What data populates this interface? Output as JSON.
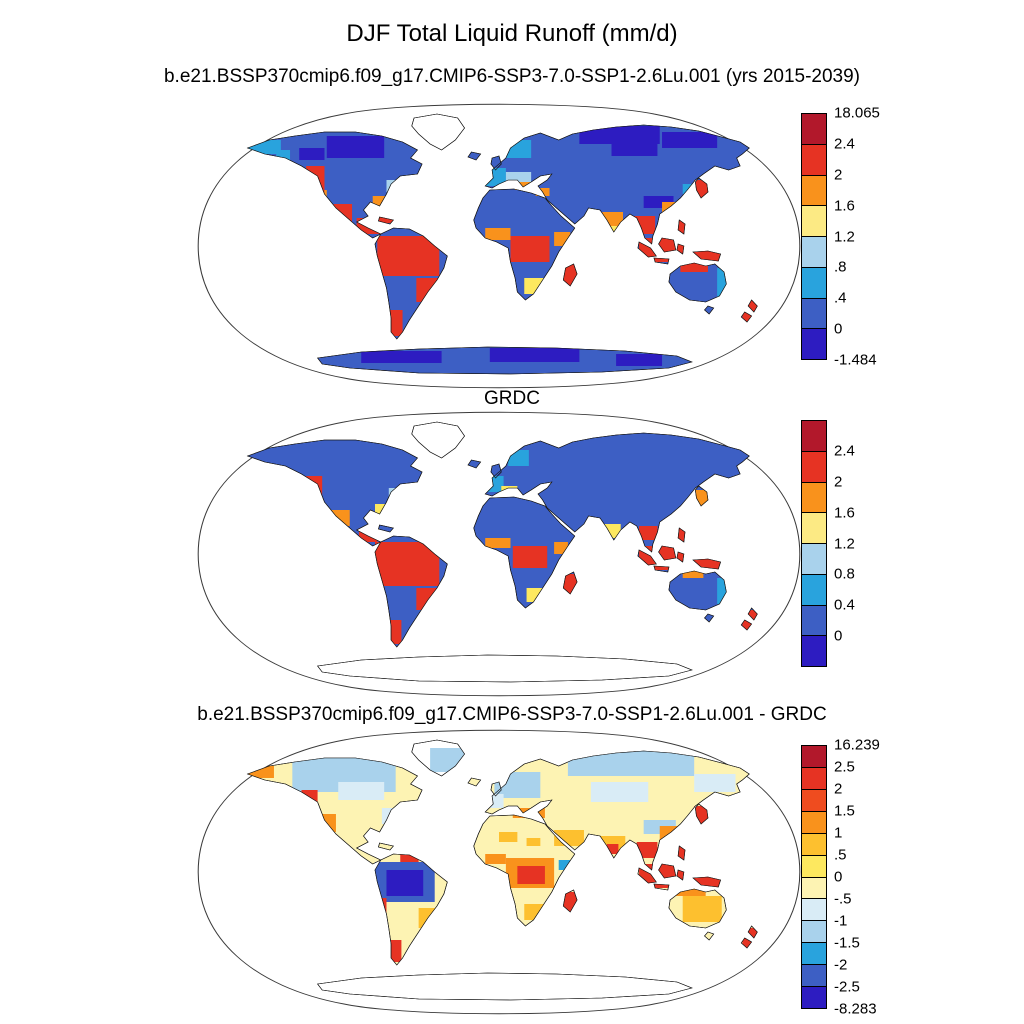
{
  "figure": {
    "title": "DJF Total Liquid Runoff (mm/d)",
    "background": "#ffffff"
  },
  "palette": {
    "darkred": "#b2182b",
    "red": "#e63323",
    "orangered": "#ef4c1f",
    "orange": "#f9921c",
    "amber": "#fdc02f",
    "yellow": "#fde85f",
    "lightyellow": "#fcea84",
    "paleyellow": "#fdf3b3",
    "palestblue": "#d9ecf6",
    "paleblue": "#a9d2ec",
    "cyan": "#29a3dd",
    "blue": "#3d5fc4",
    "indigo": "#2d1cc1",
    "white": "#ffffff"
  },
  "panels": [
    {
      "name": "model",
      "subtitle": "b.e21.BSSP370cmip6.f09_g17.CMIP6-SSP3-7.0-SSP1-2.6Lu.001 (yrs 2015-2039)",
      "colorbar": {
        "colors": [
          "#b2182b",
          "#e63323",
          "#f9921c",
          "#fcea84",
          "#a9d2ec",
          "#29a3dd",
          "#3d5fc4",
          "#2d1cc1"
        ],
        "labels": [
          "18.065",
          "2.4",
          "2",
          "1.6",
          "1.2",
          ".8",
          ".4",
          "0",
          "-1.484"
        ]
      }
    },
    {
      "name": "observations",
      "subtitle": "GRDC",
      "colorbar": {
        "colors": [
          "#b2182b",
          "#e63323",
          "#f9921c",
          "#fcea84",
          "#a9d2ec",
          "#29a3dd",
          "#3d5fc4",
          "#2d1cc1"
        ],
        "labels": [
          "",
          "2.4",
          "2",
          "1.6",
          "1.2",
          "0.8",
          "0.4",
          "0",
          ""
        ]
      }
    },
    {
      "name": "difference",
      "subtitle": "b.e21.BSSP370cmip6.f09_g17.CMIP6-SSP3-7.0-SSP1-2.6Lu.001 - GRDC",
      "colorbar": {
        "colors": [
          "#b2182b",
          "#e63323",
          "#ef4c1f",
          "#f9921c",
          "#fdc02f",
          "#fde85f",
          "#fdf3b3",
          "#d9ecf6",
          "#a9d2ec",
          "#29a3dd",
          "#3d5fc4",
          "#2d1cc1"
        ],
        "labels": [
          "16.239",
          "2.5",
          "2",
          "1.5",
          "1",
          ".5",
          "0",
          "-.5",
          "-1",
          "-1.5",
          "-2",
          "-2.5",
          "-8.283"
        ]
      }
    }
  ],
  "chart_data": [
    {
      "type": "heatmap",
      "subtype": "global-map",
      "map_projection": "robinson",
      "variable": "DJF Total Liquid Runoff",
      "units": "mm/d",
      "panel_title": "b.e21.BSSP370cmip6.f09_g17.CMIP6-SSP3-7.0-SSP1-2.6Lu.001 (yrs 2015-2039)",
      "value_min": -1.484,
      "value_max": 18.065,
      "contour_levels": [
        0,
        0.4,
        0.8,
        1.2,
        1.6,
        2,
        2.4
      ],
      "palette_top_to_bottom": [
        "#b2182b",
        "#e63323",
        "#f9921c",
        "#fcea84",
        "#a9d2ec",
        "#29a3dd",
        "#3d5fc4",
        "#2d1cc1"
      ],
      "legend_position": "right",
      "notes": "Land mostly 0-0.4 mm/d (blue); high runoff (red, >2.4) over Amazon, Congo, Madagascar, Pacific NW, Indonesia, New Guinea, New Zealand; Antarctica shaded blue."
    },
    {
      "type": "heatmap",
      "subtype": "global-map",
      "map_projection": "robinson",
      "variable": "DJF Total Liquid Runoff",
      "units": "mm/d",
      "panel_title": "GRDC",
      "contour_levels": [
        0,
        0.4,
        0.8,
        1.2,
        1.6,
        2,
        2.4
      ],
      "palette_top_to_bottom": [
        "#b2182b",
        "#e63323",
        "#f9921c",
        "#fcea84",
        "#a9d2ec",
        "#29a3dd",
        "#3d5fc4",
        "#2d1cc1"
      ],
      "legend_position": "right",
      "notes": "Observed runoff; land mostly 0-0.4 mm/d (blue); red maxima over Amazon basin, Congo, Madagascar, Pacific NW, Indonesia; Antarctica blank."
    },
    {
      "type": "heatmap",
      "subtype": "global-map",
      "map_projection": "robinson",
      "variable": "DJF Total Liquid Runoff difference (model minus GRDC)",
      "units": "mm/d",
      "panel_title": "b.e21.BSSP370cmip6.f09_g17.CMIP6-SSP3-7.0-SSP1-2.6Lu.001 - GRDC",
      "value_min": -8.283,
      "value_max": 16.239,
      "contour_levels": [
        -2.5,
        -2,
        -1.5,
        -1,
        -0.5,
        0,
        0.5,
        1,
        1.5,
        2,
        2.5
      ],
      "palette_top_to_bottom": [
        "#b2182b",
        "#e63323",
        "#ef4c1f",
        "#f9921c",
        "#fdc02f",
        "#fde85f",
        "#fdf3b3",
        "#d9ecf6",
        "#a9d2ec",
        "#29a3dd",
        "#3d5fc4",
        "#2d1cc1"
      ],
      "legend_position": "right",
      "notes": "Mostly small positive bias (pale yellow) over land, pale blue over high latitudes, strong negative (indigo/blue) over Amazon, strong positive (red) over Andes, Pacific NW, Indonesia, Japan, New Zealand."
    }
  ]
}
